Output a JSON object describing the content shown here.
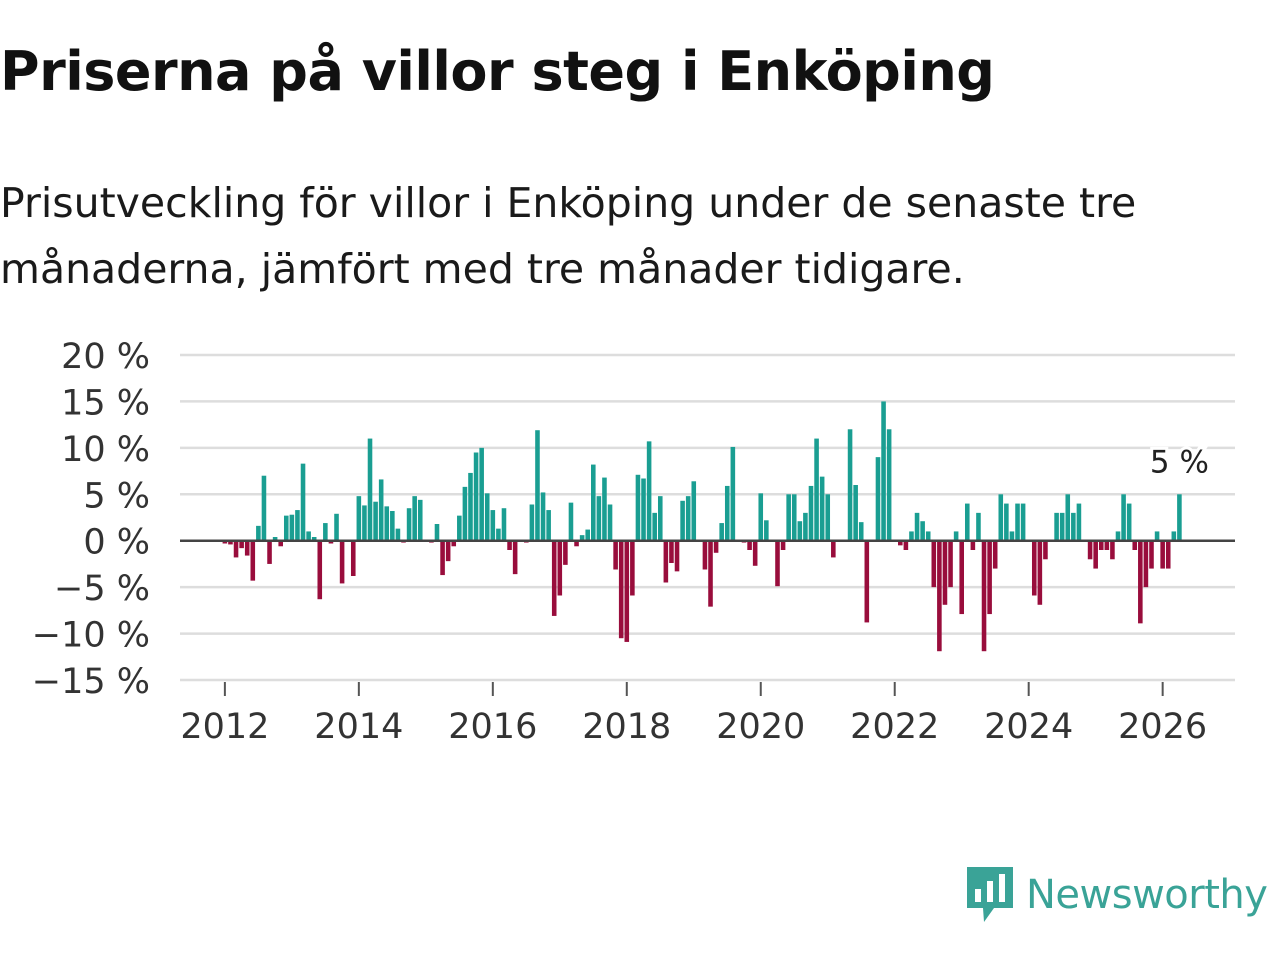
{
  "title": "Priserna på villor steg i Enköping",
  "subtitle": "Prisutveckling för villor i Enköping under de senaste tre månaderna, jämfört med tre månader tidigare.",
  "brand": {
    "name": "Newsworthy",
    "icon": "newsworthy-logo-icon"
  },
  "colors": {
    "positive": "#1a9e92",
    "negative": "#990d3c",
    "grid": "#dddddd",
    "zero": "#444444",
    "text": "#333333",
    "brand": "#3aa397"
  },
  "chart_data": {
    "type": "bar",
    "title": "Priserna på villor steg i Enköping",
    "unit": "%",
    "ylim": [
      -15,
      20
    ],
    "yticks": [
      20,
      15,
      10,
      5,
      0,
      -5,
      -10,
      -15
    ],
    "ytick_labels": [
      "20 %",
      "15 %",
      "10 %",
      "5 %",
      "0 %",
      "−5 %",
      "−10 %",
      "−15 %"
    ],
    "xlim": [
      2011.33,
      2027.08
    ],
    "xticks": [
      2012,
      2014,
      2016,
      2018,
      2020,
      2022,
      2024,
      2026
    ],
    "xtick_labels": [
      "2012",
      "2014",
      "2016",
      "2018",
      "2020",
      "2022",
      "2024",
      "2026"
    ],
    "start_year": 2012,
    "start_month": 1,
    "values": [
      -0.3,
      -0.4,
      -1.8,
      -0.8,
      -1.6,
      -4.3,
      1.6,
      7.0,
      -2.5,
      0.4,
      -0.6,
      2.7,
      2.8,
      3.3,
      8.3,
      1.0,
      0.4,
      -6.3,
      1.9,
      -0.3,
      2.9,
      -4.6,
      0,
      -3.8,
      4.8,
      3.8,
      11.0,
      4.2,
      6.6,
      3.7,
      3.2,
      1.3,
      -0.2,
      3.5,
      4.8,
      4.4,
      0,
      -0.2,
      1.8,
      -3.7,
      -2.2,
      -0.6,
      2.7,
      5.8,
      7.3,
      9.5,
      10.0,
      5.1,
      3.3,
      1.3,
      3.5,
      -1.0,
      -3.6,
      0,
      -0.2,
      3.9,
      11.9,
      5.2,
      3.3,
      -8.1,
      -5.9,
      -2.6,
      4.1,
      -0.6,
      0.6,
      1.2,
      8.2,
      4.8,
      6.8,
      3.9,
      -3.1,
      -10.5,
      -10.9,
      -5.9,
      7.1,
      6.7,
      10.7,
      3.0,
      4.8,
      -4.5,
      -2.4,
      -3.3,
      4.3,
      4.8,
      6.4,
      0,
      -3.1,
      -7.1,
      -1.3,
      1.9,
      5.9,
      10.1,
      0,
      -0.2,
      -1.0,
      -2.7,
      5.1,
      2.2,
      0,
      -4.9,
      -1.0,
      5.0,
      5.0,
      2.1,
      3.0,
      5.9,
      11.0,
      6.9,
      5.0,
      -1.8,
      0,
      0,
      12.0,
      6.0,
      2.0,
      -8.8,
      0,
      9.0,
      15.0,
      12.0,
      0,
      -0.5,
      -1.0,
      1.0,
      3.0,
      2.1,
      1.0,
      -5.0,
      -11.9,
      -6.9,
      -5.0,
      1.0,
      -7.9,
      4.0,
      -1.0,
      3.0,
      -11.9,
      -7.9,
      -3.0,
      5.0,
      4.0,
      1.0,
      4.0,
      4.0,
      0,
      -5.9,
      -6.9,
      -2.0,
      0,
      3.0,
      3.0,
      5.0,
      3.0,
      4.0,
      0,
      -2.0,
      -3.0,
      -1.0,
      -1.0,
      -2.0,
      1.0,
      5.0,
      4.0,
      -1.0,
      -8.9,
      -5.0,
      -3.0,
      1.0,
      -3.0,
      -3.0,
      1.0,
      5.0
    ],
    "annotation": {
      "label": "5 %",
      "value": 5
    }
  }
}
